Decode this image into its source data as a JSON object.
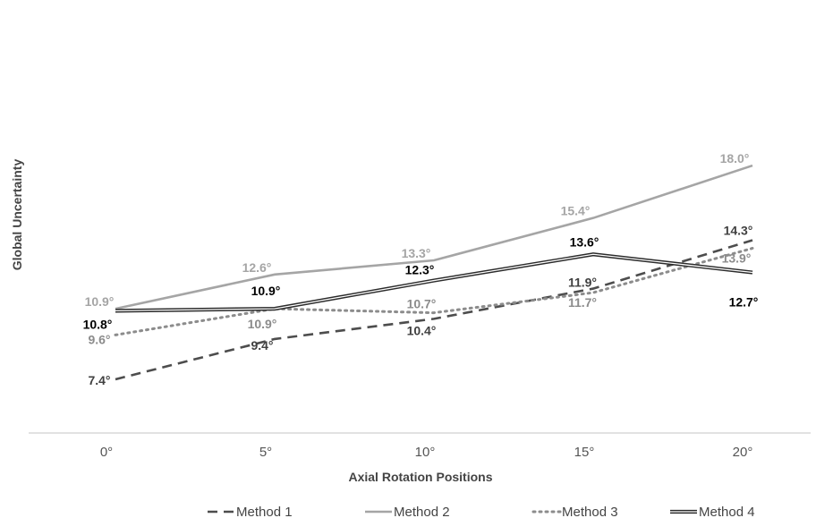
{
  "chart_data": {
    "type": "line",
    "title": "",
    "xlabel": "Axial Rotation Positions",
    "ylabel": "Global Uncertainty",
    "categories": [
      "0°",
      "5°",
      "10°",
      "15°",
      "20°"
    ],
    "ylim": [
      4,
      19
    ],
    "grid": false,
    "legend_position": "bottom",
    "series": [
      {
        "name": "Method 1",
        "style": "dashed",
        "color": "#4d4d4d",
        "values": [
          7.4,
          9.4,
          10.4,
          11.9,
          14.3
        ],
        "labels": [
          "7.4°",
          "9.4°",
          "10.4°",
          "11.9°",
          "14.3°"
        ]
      },
      {
        "name": "Method 2",
        "style": "solid",
        "color": "#a5a5a5",
        "values": [
          10.9,
          12.6,
          13.3,
          15.4,
          18.0
        ],
        "labels": [
          "10.9°",
          "12.6°",
          "13.3°",
          "15.4°",
          "18.0°"
        ]
      },
      {
        "name": "Method 3",
        "style": "dotted",
        "color": "#8c8c8c",
        "values": [
          9.6,
          10.9,
          10.7,
          11.7,
          13.9
        ],
        "labels": [
          "9.6°",
          "10.9°",
          "10.7°",
          "11.7°",
          "13.9°"
        ]
      },
      {
        "name": "Method 4",
        "style": "double",
        "color": "#2b2b2b",
        "values": [
          10.8,
          10.9,
          12.3,
          13.6,
          12.7
        ],
        "labels": [
          "10.8°",
          "10.9°",
          "12.3°",
          "13.6°",
          "12.7°"
        ]
      }
    ]
  }
}
